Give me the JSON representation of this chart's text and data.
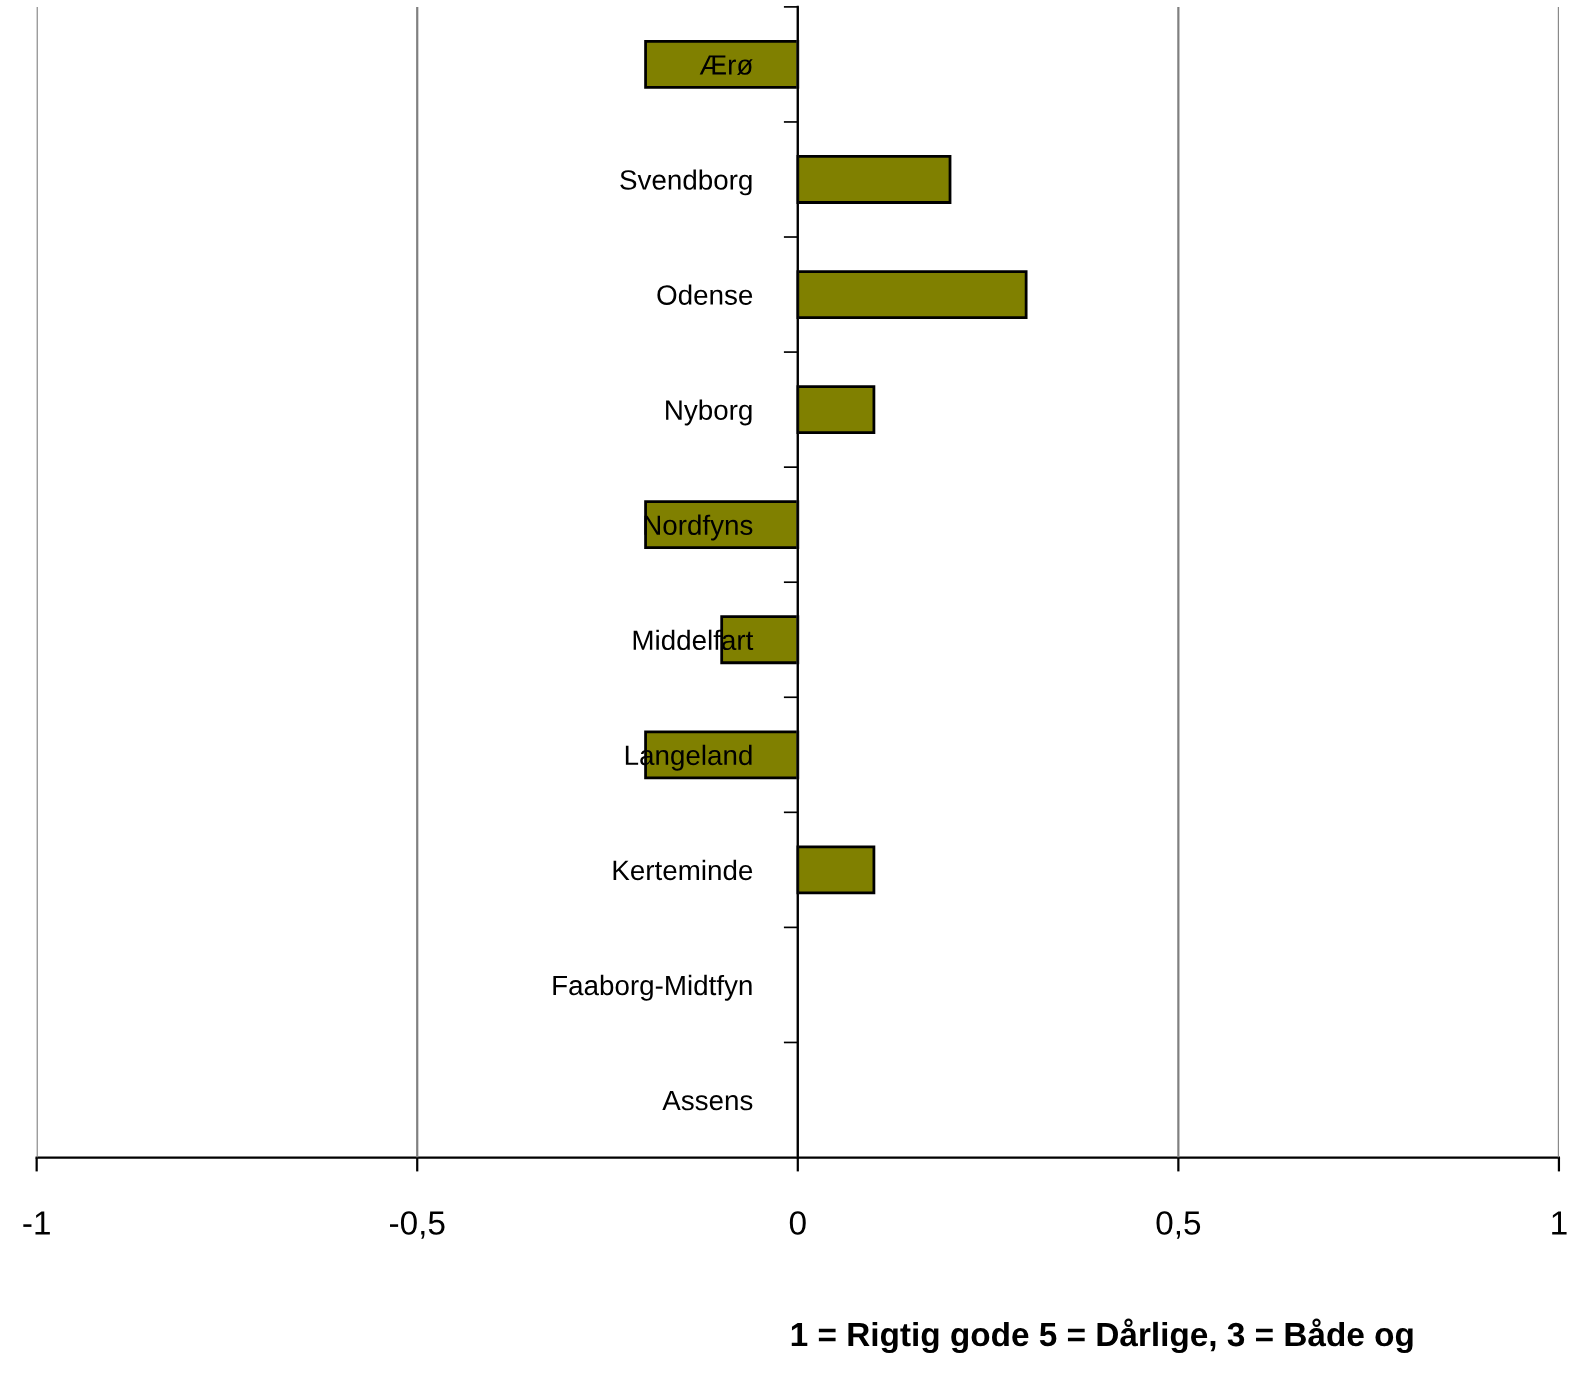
{
  "chart_data": {
    "type": "bar",
    "orientation": "horizontal",
    "categories": [
      "Ærø",
      "Svendborg",
      "Odense",
      "Nyborg",
      "Nordfyns",
      "Middelfart",
      "Langeland",
      "Kerteminde",
      "Faaborg-Midtfyn",
      "Assens"
    ],
    "values": [
      -0.2,
      0.2,
      0.3,
      0.1,
      -0.2,
      -0.1,
      -0.2,
      0.1,
      0,
      0
    ],
    "color": "#808000",
    "xlim": [
      -1,
      1
    ],
    "xticks": [
      {
        "value": -1,
        "label": "-1"
      },
      {
        "value": -0.5,
        "label": "-0,5"
      },
      {
        "value": 0,
        "label": "0"
      },
      {
        "value": 0.5,
        "label": "0,5"
      },
      {
        "value": 1,
        "label": "1"
      }
    ],
    "xlabel": "1 = Rigtig gode 5 = Dårlige, 3 = Både og",
    "grid": "x",
    "legend": false
  }
}
